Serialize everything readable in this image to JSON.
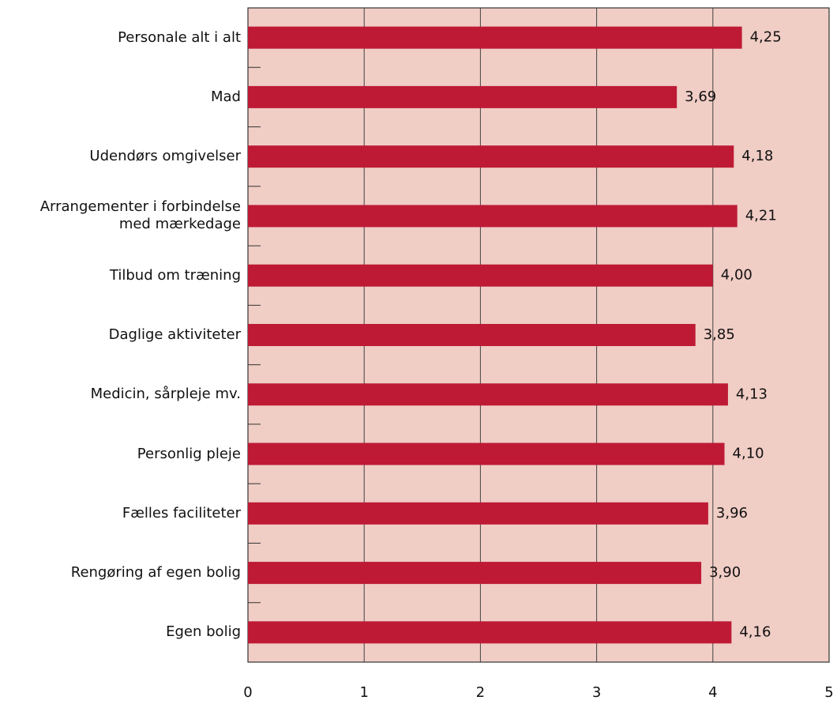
{
  "chart_data": {
    "type": "bar",
    "orientation": "horizontal",
    "categories": [
      "Personale alt i alt",
      "Mad",
      "Udendørs omgivelser",
      "Arrangementer i forbindelse\nmed mærkedage",
      "Tilbud om træning",
      "Daglige aktiviteter",
      "Medicin, sårpleje mv.",
      "Personlig pleje",
      "Fælles faciliteter",
      "Rengøring af egen bolig",
      "Egen bolig"
    ],
    "values": [
      4.25,
      3.69,
      4.18,
      4.21,
      4.0,
      3.85,
      4.13,
      4.1,
      3.96,
      3.9,
      4.16
    ],
    "value_labels": [
      "4,25",
      "3,69",
      "4,18",
      "4,21",
      "4,00",
      "3,85",
      "4,13",
      "4,10",
      "3,96",
      "3,90",
      "4,16"
    ],
    "color": "#be1a36",
    "background": "#f0cdc5",
    "xlim": [
      0,
      5
    ],
    "xticks": [
      0,
      1,
      2,
      3,
      4,
      5
    ],
    "grid": true
  }
}
